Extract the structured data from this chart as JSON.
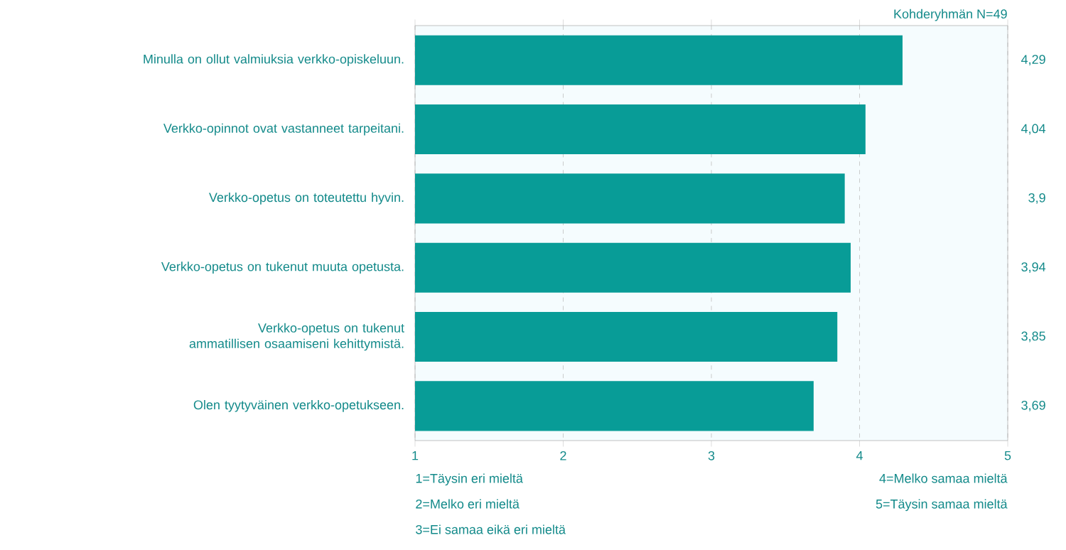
{
  "chart_data": {
    "type": "bar",
    "orientation": "horizontal",
    "categories": [
      "Minulla on ollut valmiuksia verkko-opiskeluun.",
      "Verkko-opinnot ovat vastanneet tarpeitani.",
      "Verkko-opetus on toteutettu hyvin.",
      "Verkko-opetus on tukenut muuta opetusta.",
      "Verkko-opetus on tukenut ammatillisen osaamiseni kehittymistä.",
      "Olen tyytyväinen verkko-opetukseen."
    ],
    "values": [
      4.29,
      4.04,
      3.9,
      3.94,
      3.85,
      3.69
    ],
    "value_labels": [
      "4,29",
      "4,04",
      "3,9",
      "3,94",
      "3,85",
      "3,69"
    ],
    "color": "#089c97",
    "xlim": [
      1,
      5
    ],
    "xticks": [
      1,
      2,
      3,
      4,
      5
    ],
    "grid": "x",
    "annotations": [
      "Kohderyhmän N=49",
      "1=Täysin eri mieltä",
      "2=Melko eri mieltä",
      "3=Ei samaa eikä eri mieltä",
      "4=Melko samaa mieltä",
      "5=Täysin samaa mieltä"
    ]
  }
}
